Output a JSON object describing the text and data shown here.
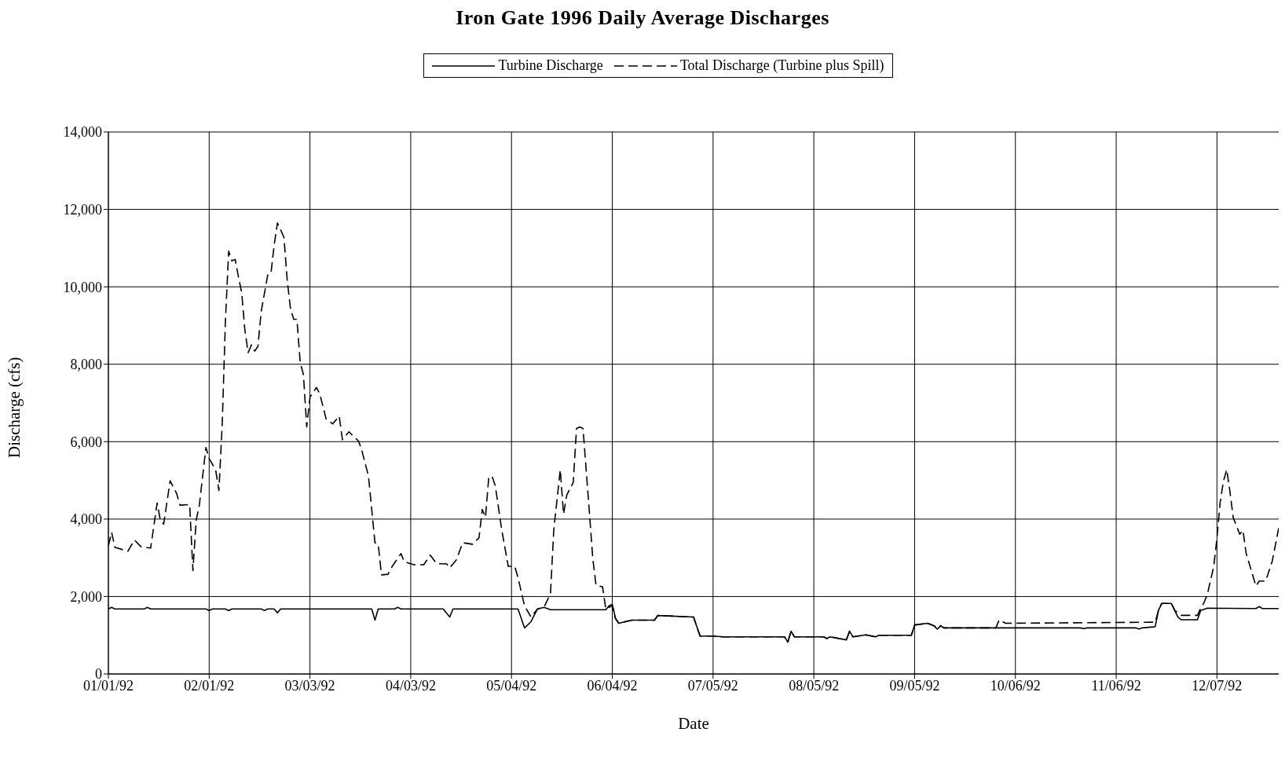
{
  "chart_data": {
    "type": "line",
    "title": "Iron Gate 1996 Daily Average Discharges",
    "xlabel": "Date",
    "ylabel": "Discharge (cfs)",
    "legend": "top",
    "grid": true,
    "marker": "none",
    "xlim": [
      "1992-01-01",
      "1992-12-26"
    ],
    "xticks": [
      {
        "value": "1992-01-01",
        "label": "01/01/92"
      },
      {
        "value": "1992-02-01",
        "label": "02/01/92"
      },
      {
        "value": "1992-03-03",
        "label": "03/03/92"
      },
      {
        "value": "1992-04-03",
        "label": "04/03/92"
      },
      {
        "value": "1992-05-04",
        "label": "05/04/92"
      },
      {
        "value": "1992-06-04",
        "label": "06/04/92"
      },
      {
        "value": "1992-07-05",
        "label": "07/05/92"
      },
      {
        "value": "1992-08-05",
        "label": "08/05/92"
      },
      {
        "value": "1992-09-05",
        "label": "09/05/92"
      },
      {
        "value": "1992-10-06",
        "label": "10/06/92"
      },
      {
        "value": "1992-11-06",
        "label": "11/06/92"
      },
      {
        "value": "1992-12-07",
        "label": "12/07/92"
      }
    ],
    "ylim": [
      0,
      14000
    ],
    "yticks": [
      {
        "value": 0,
        "label": "0"
      },
      {
        "value": 2000,
        "label": "2,000"
      },
      {
        "value": 4000,
        "label": "4,000"
      },
      {
        "value": 6000,
        "label": "6,000"
      },
      {
        "value": 8000,
        "label": "8,000"
      },
      {
        "value": 10000,
        "label": "10,000"
      },
      {
        "value": 12000,
        "label": "12,000"
      },
      {
        "value": 14000,
        "label": "14,000"
      }
    ],
    "series": [
      {
        "name": "Turbine Discharge",
        "color": "#000000",
        "line_style": "solid",
        "x": [
          "1992-01-01",
          "1992-01-02",
          "1992-01-03",
          "1992-01-12",
          "1992-01-13",
          "1992-01-14",
          "1992-01-31",
          "1992-02-01",
          "1992-02-02",
          "1992-02-06",
          "1992-02-07",
          "1992-02-08",
          "1992-02-17",
          "1992-02-18",
          "1992-02-19",
          "1992-02-21",
          "1992-02-22",
          "1992-02-23",
          "1992-03-22",
          "1992-03-23",
          "1992-03-24",
          "1992-03-29",
          "1992-03-30",
          "1992-03-31",
          "1992-04-13",
          "1992-04-15",
          "1992-04-16",
          "1992-05-06",
          "1992-05-08",
          "1992-05-10",
          "1992-05-12",
          "1992-05-14",
          "1992-05-16",
          "1992-06-02",
          "1992-06-03",
          "1992-06-04",
          "1992-06-05",
          "1992-06-06",
          "1992-06-10",
          "1992-06-17",
          "1992-06-18",
          "1992-06-29",
          "1992-07-01",
          "1992-07-05",
          "1992-07-08",
          "1992-07-27",
          "1992-07-28",
          "1992-07-29",
          "1992-07-30",
          "1992-08-08",
          "1992-08-09",
          "1992-08-10",
          "1992-08-15",
          "1992-08-16",
          "1992-08-17",
          "1992-08-21",
          "1992-08-24",
          "1992-08-25",
          "1992-09-04",
          "1992-09-05",
          "1992-09-09",
          "1992-09-11",
          "1992-09-12",
          "1992-09-13",
          "1992-09-14",
          "1992-10-26",
          "1992-10-27",
          "1992-10-28",
          "1992-11-12",
          "1992-11-13",
          "1992-11-14",
          "1992-11-18",
          "1992-11-19",
          "1992-11-20",
          "1992-11-23",
          "1992-11-25",
          "1992-11-26",
          "1992-12-01",
          "1992-12-02",
          "1992-12-04",
          "1992-12-19",
          "1992-12-20",
          "1992-12-21",
          "1992-12-26"
        ],
        "values": [
          1680,
          1720,
          1680,
          1680,
          1720,
          1680,
          1680,
          1640,
          1680,
          1680,
          1640,
          1680,
          1680,
          1640,
          1680,
          1680,
          1580,
          1680,
          1680,
          1390,
          1680,
          1680,
          1720,
          1680,
          1680,
          1470,
          1680,
          1680,
          1190,
          1350,
          1680,
          1720,
          1660,
          1660,
          1760,
          1800,
          1430,
          1310,
          1390,
          1390,
          1510,
          1470,
          980,
          980,
          960,
          960,
          820,
          1105,
          960,
          960,
          915,
          960,
          880,
          1105,
          960,
          1010,
          960,
          1000,
          1000,
          1265,
          1310,
          1245,
          1155,
          1245,
          1190,
          1190,
          1170,
          1190,
          1190,
          1160,
          1190,
          1220,
          1640,
          1820,
          1820,
          1470,
          1400,
          1400,
          1640,
          1700,
          1690,
          1740,
          1690,
          1690
        ]
      },
      {
        "name": "Total Discharge (Turbine plus Spill)",
        "color": "#000000",
        "line_style": "dashed",
        "x": [
          "1992-01-01",
          "1992-01-02",
          "1992-01-03",
          "1992-01-07",
          "1992-01-09",
          "1992-01-11",
          "1992-01-14",
          "1992-01-16",
          "1992-01-17",
          "1992-01-18",
          "1992-01-20",
          "1992-01-22",
          "1992-01-23",
          "1992-01-26",
          "1992-01-27",
          "1992-01-28",
          "1992-01-29",
          "1992-01-31",
          "1992-02-01",
          "1992-02-03",
          "1992-02-04",
          "1992-02-05",
          "1992-02-06",
          "1992-02-07",
          "1992-02-08",
          "1992-02-09",
          "1992-02-10",
          "1992-02-11",
          "1992-02-12",
          "1992-02-13",
          "1992-02-14",
          "1992-02-15",
          "1992-02-16",
          "1992-02-17",
          "1992-02-19",
          "1992-02-20",
          "1992-02-21",
          "1992-02-22",
          "1992-02-24",
          "1992-02-25",
          "1992-02-26",
          "1992-02-27",
          "1992-02-28",
          "1992-02-29",
          "1992-03-01",
          "1992-03-02",
          "1992-03-03",
          "1992-03-05",
          "1992-03-06",
          "1992-03-08",
          "1992-03-10",
          "1992-03-12",
          "1992-03-13",
          "1992-03-15",
          "1992-03-18",
          "1992-03-19",
          "1992-03-21",
          "1992-03-23",
          "1992-03-24",
          "1992-03-25",
          "1992-03-27",
          "1992-03-28",
          "1992-03-31",
          "1992-04-01",
          "1992-04-04",
          "1992-04-07",
          "1992-04-09",
          "1992-04-11",
          "1992-04-14",
          "1992-04-15",
          "1992-04-17",
          "1992-04-19",
          "1992-04-22",
          "1992-04-24",
          "1992-04-25",
          "1992-04-26",
          "1992-04-27",
          "1992-04-28",
          "1992-04-29",
          "1992-05-01",
          "1992-05-03",
          "1992-05-05",
          "1992-05-06",
          "1992-05-08",
          "1992-05-10",
          "1992-05-12",
          "1992-05-14",
          "1992-05-16",
          "1992-05-17",
          "1992-05-19",
          "1992-05-20",
          "1992-05-21",
          "1992-05-23",
          "1992-05-24",
          "1992-05-25",
          "1992-05-26",
          "1992-05-28",
          "1992-05-29",
          "1992-05-30",
          "1992-06-01",
          "1992-06-02",
          "1992-06-04",
          "1992-06-05",
          "1992-06-06",
          "1992-06-10",
          "1992-06-17",
          "1992-06-18",
          "1992-06-29",
          "1992-07-01",
          "1992-07-05",
          "1992-07-08",
          "1992-07-27",
          "1992-07-28",
          "1992-07-29",
          "1992-07-30",
          "1992-08-08",
          "1992-08-09",
          "1992-08-10",
          "1992-08-15",
          "1992-08-16",
          "1992-08-17",
          "1992-08-21",
          "1992-08-24",
          "1992-08-25",
          "1992-09-04",
          "1992-09-05",
          "1992-09-09",
          "1992-09-11",
          "1992-09-12",
          "1992-09-13",
          "1992-09-14",
          "1992-09-30",
          "1992-10-01",
          "1992-10-03",
          "1992-11-18",
          "1992-11-19",
          "1992-11-20",
          "1992-11-23",
          "1992-11-24",
          "1992-11-26",
          "1992-12-01",
          "1992-12-02",
          "1992-12-03",
          "1992-12-04",
          "1992-12-06",
          "1992-12-07",
          "1992-12-08",
          "1992-12-09",
          "1992-12-10",
          "1992-12-11",
          "1992-12-12",
          "1992-12-14",
          "1992-12-15",
          "1992-12-16",
          "1992-12-19",
          "1992-12-20",
          "1992-12-22",
          "1992-12-24",
          "1992-12-26"
        ],
        "values": [
          3310,
          3660,
          3270,
          3170,
          3460,
          3290,
          3250,
          4415,
          3965,
          3870,
          4990,
          4660,
          4360,
          4375,
          2670,
          3965,
          4375,
          5850,
          5560,
          5270,
          4740,
          6420,
          9120,
          10920,
          10670,
          10710,
          10260,
          9850,
          8870,
          8300,
          8500,
          8340,
          8460,
          9360,
          10300,
          10340,
          11080,
          11650,
          11280,
          10180,
          9440,
          9160,
          9160,
          8050,
          7730,
          6380,
          7150,
          7400,
          7240,
          6580,
          6460,
          6660,
          6050,
          6255,
          6010,
          5760,
          5110,
          3390,
          3350,
          2560,
          2575,
          2740,
          3110,
          2900,
          2820,
          2820,
          3070,
          2845,
          2845,
          2740,
          2940,
          3390,
          3350,
          3515,
          4250,
          4050,
          5070,
          5110,
          4865,
          3720,
          2780,
          2780,
          2490,
          1760,
          1470,
          1680,
          1720,
          2085,
          3720,
          5275,
          4130,
          4620,
          4950,
          6340,
          6380,
          6340,
          4130,
          2985,
          2290,
          2250,
          1680,
          1760,
          1430,
          1310,
          1390,
          1390,
          1510,
          1470,
          980,
          980,
          960,
          960,
          820,
          1105,
          960,
          960,
          915,
          960,
          880,
          1105,
          960,
          1010,
          960,
          1000,
          1000,
          1265,
          1310,
          1245,
          1155,
          1245,
          1190,
          1190,
          1395,
          1310,
          1336,
          1640,
          1820,
          1820,
          1640,
          1515,
          1515,
          1700,
          1840,
          2040,
          2770,
          3510,
          4440,
          4980,
          5280,
          4710,
          4040,
          3610,
          3710,
          3110,
          2270,
          2400,
          2400,
          2910,
          3770
        ]
      }
    ]
  }
}
